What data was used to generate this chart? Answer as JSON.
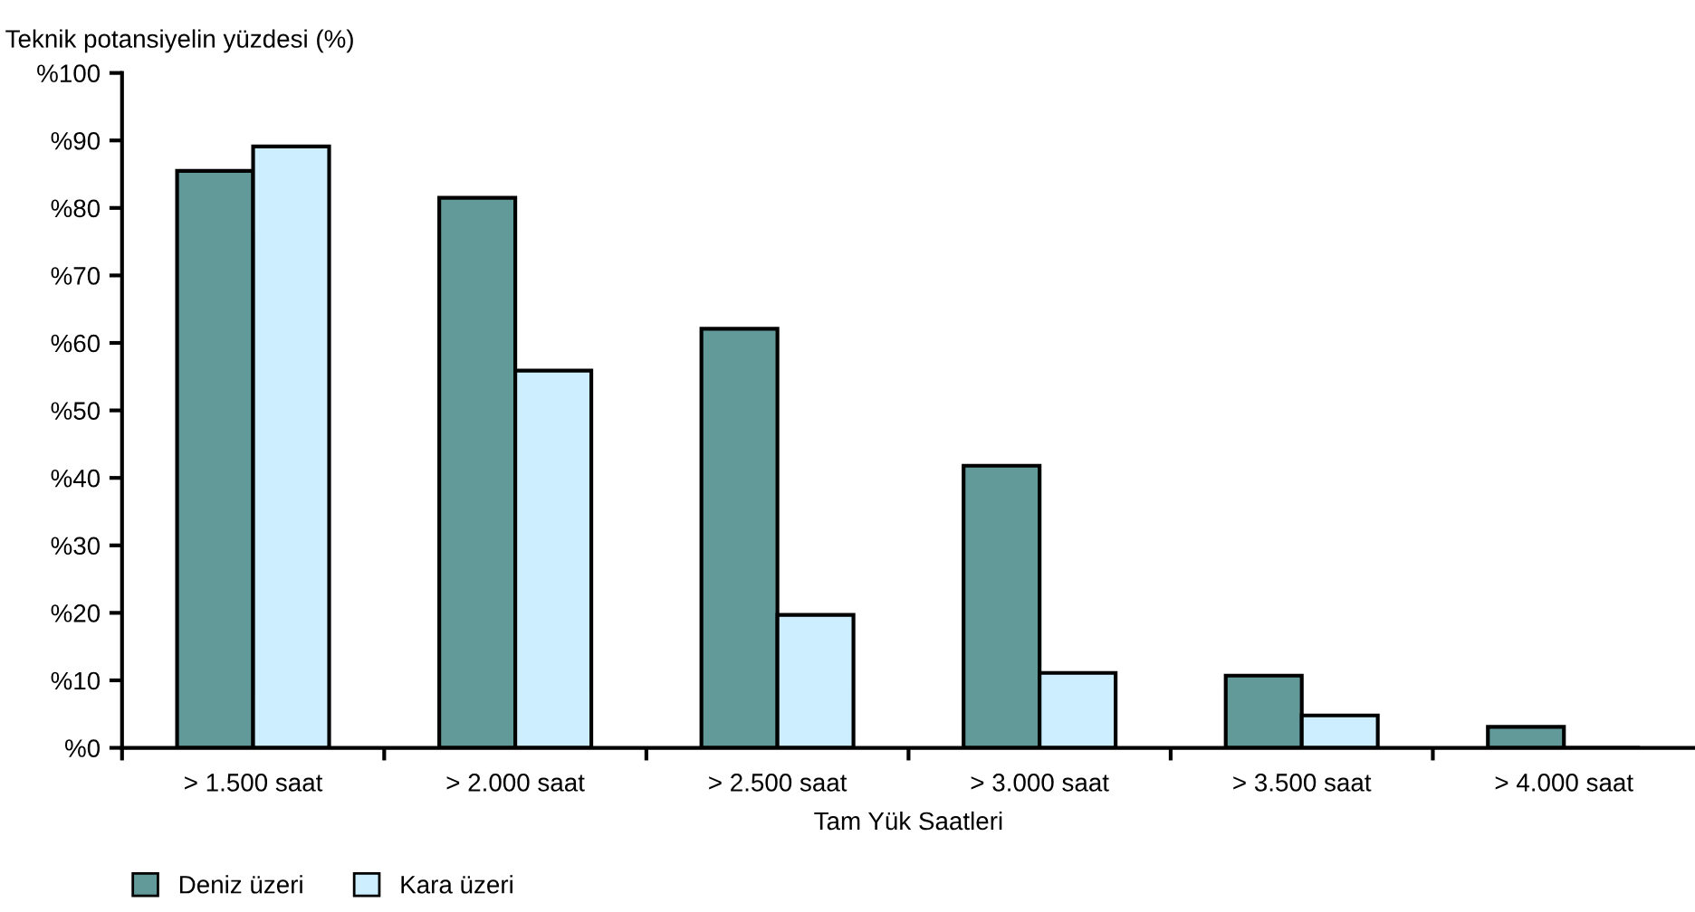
{
  "chart_data": {
    "type": "bar",
    "ylabel": "Teknik potansiyelin yüzdesi (%)",
    "xlabel": "Tam Yük Saatleri",
    "categories": [
      "> 1.500 saat",
      "> 2.000 saat",
      "> 2.500 saat",
      "> 3.000 saat",
      "> 3.500 saat",
      "> 4.000 saat"
    ],
    "series": [
      {
        "name": "Deniz üzeri",
        "color": "#629999",
        "values": [
          85.5,
          81.5,
          62.1,
          41.8,
          10.7,
          3.1
        ]
      },
      {
        "name": "Kara üzeri",
        "color": "#cceeff",
        "values": [
          89.1,
          55.9,
          19.7,
          11.1,
          4.8,
          0
        ]
      }
    ],
    "ylim": [
      0,
      100
    ],
    "yticks": [
      {
        "value": 0,
        "label": "%0"
      },
      {
        "value": 10,
        "label": "%10"
      },
      {
        "value": 20,
        "label": "%20"
      },
      {
        "value": 30,
        "label": "%30"
      },
      {
        "value": 40,
        "label": "%40"
      },
      {
        "value": 50,
        "label": "%50"
      },
      {
        "value": 60,
        "label": "%60"
      },
      {
        "value": 70,
        "label": "%70"
      },
      {
        "value": 80,
        "label": "%80"
      },
      {
        "value": 90,
        "label": "%90"
      },
      {
        "value": 100,
        "label": "%100"
      }
    ],
    "grid": false,
    "legend": "bottom left"
  }
}
